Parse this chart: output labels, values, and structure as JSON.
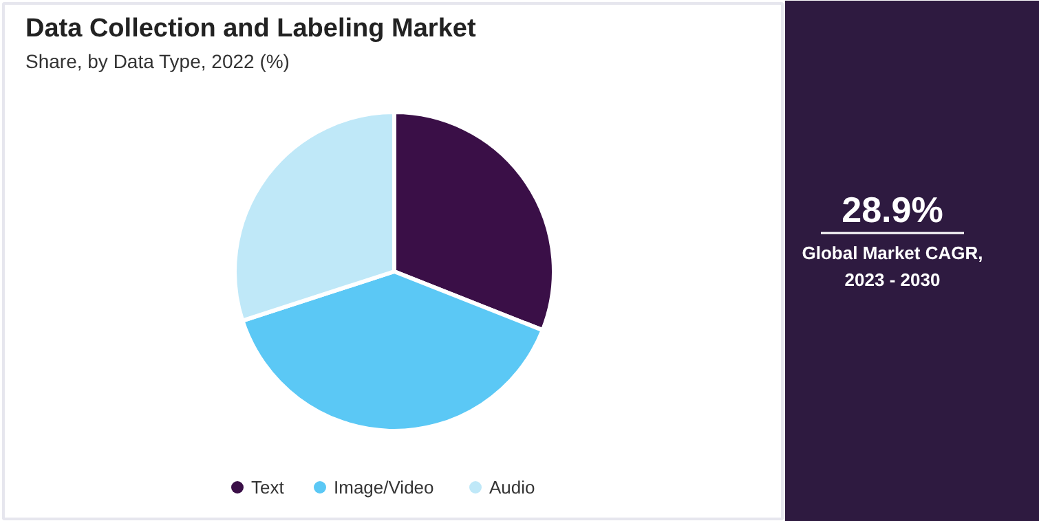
{
  "chart_data": {
    "type": "pie",
    "title": "Data Collection and Labeling Market",
    "subtitle": "Share, by Data Type, 2022 (%)",
    "categories": [
      "Text",
      "Image/Video",
      "Audio"
    ],
    "values": [
      31,
      39,
      30
    ],
    "colors": [
      "#3a0f47",
      "#5bc8f5",
      "#bfe8f8"
    ],
    "legend": "bottom",
    "annotations": [
      "28.9%",
      "Global Market CAGR,\n2023 - 2030"
    ]
  }
}
